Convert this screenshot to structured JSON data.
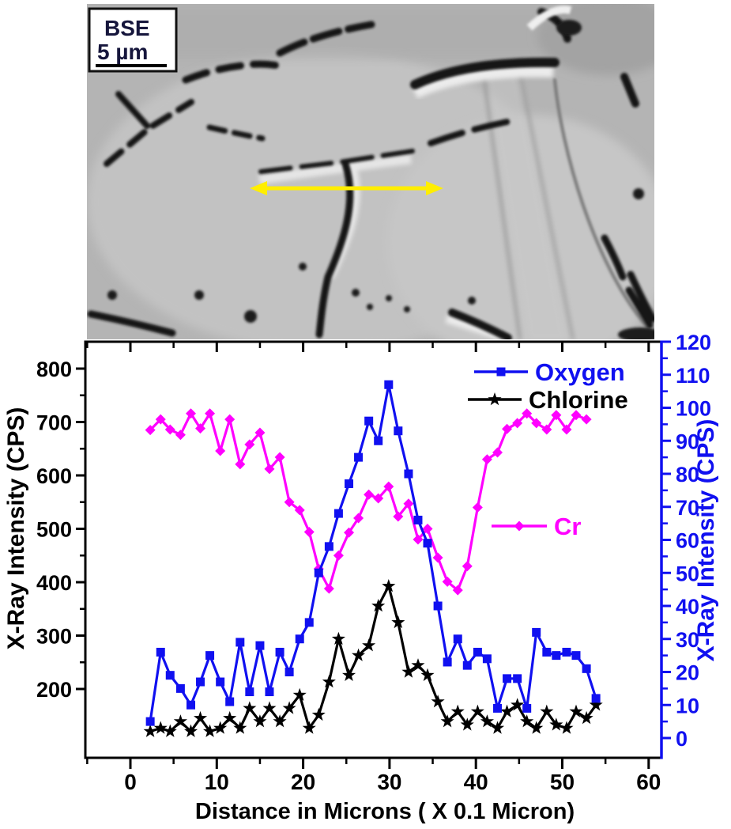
{
  "figure": {
    "description": "BSE micrograph with EDS line-scan X-ray intensity profile",
    "colors": {
      "oxygen_blue": "#1010f0",
      "chlorine_black": "#000000",
      "cr_magenta": "#ff00ff",
      "arrow_yellow": "#ffee00",
      "axis_black": "#000000"
    }
  },
  "micrograph": {
    "detector_label": "BSE",
    "scale_label": "5 µm",
    "annotation": "double-headed horizontal arrow marking line-scan"
  },
  "chart_data": {
    "type": "line",
    "title": "",
    "xlabel": "Distance in Microns ( X 0.1 Micron)",
    "x_axis": {
      "ticks": [
        0,
        10,
        20,
        30,
        40,
        50,
        60
      ],
      "minor_step": 5,
      "xlim": [
        -5.2,
        61.5
      ]
    },
    "left_axis": {
      "label": "X-Ray Intensity (CPS)",
      "color": "#000000",
      "ticks": [
        200,
        300,
        400,
        500,
        600,
        700,
        800
      ],
      "minor_step": 50,
      "ylim": [
        71,
        850
      ]
    },
    "right_axis": {
      "label": "X-Ray Intensity (CPS)",
      "color": "#1010f0",
      "ticks": [
        0,
        10,
        20,
        30,
        40,
        50,
        60,
        70,
        80,
        90,
        100,
        110,
        120
      ],
      "minor_step": 5,
      "ylim": [
        -6,
        120
      ]
    },
    "grid": false,
    "legend_position": "inside: Oxygen/Chlorine top-right, Cr middle-right",
    "x": [
      2.3,
      3.5,
      4.6,
      5.8,
      7,
      8.1,
      9.2,
      10.4,
      11.5,
      12.7,
      13.8,
      15,
      16.1,
      17.3,
      18.4,
      19.6,
      20.7,
      21.8,
      23,
      24.1,
      25.3,
      26.4,
      27.6,
      28.7,
      29.9,
      31,
      32.2,
      33.3,
      34.4,
      35.6,
      36.7,
      37.9,
      39,
      40.2,
      41.3,
      42.5,
      43.6,
      44.8,
      45.9,
      47,
      48.2,
      49.3,
      50.5,
      51.6,
      52.8,
      53.9
    ],
    "series": [
      {
        "name": "Cr",
        "axis": "left",
        "color": "#ff00ff",
        "marker": "diamond",
        "values": [
          685,
          705,
          686,
          676,
          716,
          688,
          716,
          646,
          705,
          621,
          658,
          680,
          612,
          634,
          550,
          535,
          494,
          425,
          388,
          450,
          493,
          520,
          564,
          557,
          579,
          523,
          547,
          480,
          500,
          446,
          401,
          385,
          430,
          540,
          630,
          643,
          687,
          698,
          716,
          698,
          686,
          713,
          686,
          713,
          705,
          null
        ]
      },
      {
        "name": "Chlorine",
        "axis": "right",
        "color": "#000000",
        "marker": "star",
        "values": [
          2,
          3,
          2,
          5,
          2,
          6,
          2,
          3,
          6,
          3,
          9,
          5,
          9,
          5,
          9,
          13,
          3,
          7,
          17,
          30,
          19,
          25,
          28,
          40,
          46,
          35,
          20,
          22,
          19,
          11,
          5,
          8,
          4,
          8,
          5,
          3,
          8,
          10,
          5,
          3,
          8,
          4,
          3,
          8,
          6,
          10
        ]
      },
      {
        "name": "Oxygen",
        "axis": "right",
        "color": "#1010f0",
        "marker": "square",
        "values": [
          5,
          26,
          19,
          15,
          10,
          17,
          25,
          17,
          11,
          29,
          14,
          28,
          14,
          26,
          20,
          30,
          35,
          50,
          58,
          68,
          77,
          85,
          96,
          90,
          107,
          93,
          80,
          66,
          59,
          40,
          23,
          30,
          22,
          26,
          24,
          9,
          18,
          18,
          9,
          32,
          26,
          25,
          26,
          25,
          21,
          12
        ]
      }
    ]
  }
}
